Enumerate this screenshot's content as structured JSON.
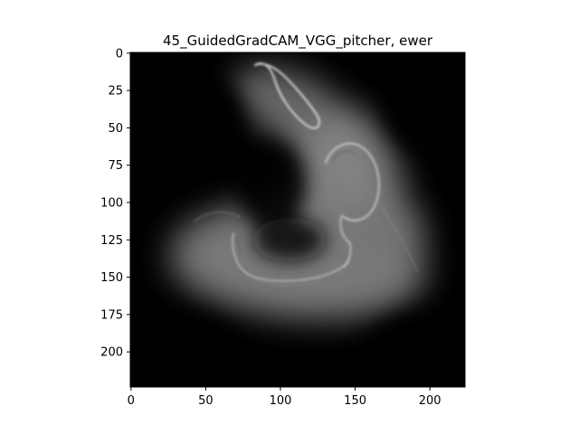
{
  "figure": {
    "title": "45_GuidedGradCAM_VGG_pitcher, ewer",
    "image_description": "",
    "x_axis": {
      "range": [
        0,
        224
      ],
      "ticks": [
        0,
        50,
        100,
        150,
        200
      ],
      "tick_labels": [
        "0",
        "50",
        "100",
        "150",
        "200"
      ]
    },
    "y_axis": {
      "range": [
        0,
        224
      ],
      "inverted": true,
      "ticks": [
        0,
        25,
        50,
        75,
        100,
        125,
        150,
        175,
        200
      ],
      "tick_labels": [
        "0",
        "25",
        "50",
        "75",
        "100",
        "125",
        "150",
        "175",
        "200"
      ]
    },
    "colors": {
      "background": "#ffffff",
      "image_base": "#000000",
      "glow": "#ffffff",
      "axis": "#000000"
    }
  }
}
